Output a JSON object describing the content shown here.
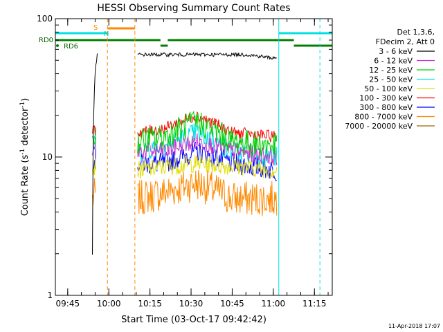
{
  "chart_data": {
    "type": "line",
    "title": "HESSI Observing Summary Count Rates",
    "xlabel": "Start Time (03-Oct-17 09:42:42)",
    "ylabel": "Count Rate (s⁻¹ detector⁻¹)",
    "ylabel_parts": {
      "main": "Count Rate (s",
      "sup1": "-1",
      "mid": " detector",
      "sup2": "-1",
      "end": ")"
    },
    "y_scale": "log",
    "ylim": [
      1,
      100
    ],
    "y_ticks": [
      {
        "value": 1,
        "label": "1"
      },
      {
        "value": 10,
        "label": "10"
      },
      {
        "value": 100,
        "label": "100"
      }
    ],
    "xlim": [
      "09:40:30",
      "11:21:30"
    ],
    "x_ticks": [
      {
        "time": "09:45",
        "label": "09:45"
      },
      {
        "time": "10:00",
        "label": "10:00"
      },
      {
        "time": "10:15",
        "label": "10:15"
      },
      {
        "time": "10:30",
        "label": "10:30"
      },
      {
        "time": "10:45",
        "label": "10:45"
      },
      {
        "time": "11:00",
        "label": "11:00"
      },
      {
        "time": "11:15",
        "label": "11:15"
      }
    ],
    "legend_header": [
      "Det 1,3,6,",
      "FDecim 2, Att 0"
    ],
    "legend_position": "outside-right",
    "series": [
      {
        "name": "3 - 6 keV",
        "color": "#000000",
        "segments": [
          {
            "x": [
              "09:54:00",
              "09:55:00",
              "09:56:00"
            ],
            "y": [
              2,
              40,
              60
            ]
          },
          {
            "x": [
              "10:10:30",
              "10:20:00",
              "10:30:00",
              "10:40:00",
              "10:50:00",
              "11:00:00",
              "11:01:30"
            ],
            "y": [
              55,
              55,
              55,
              55,
              55,
              52,
              52
            ]
          }
        ]
      },
      {
        "name": "6 - 12 keV",
        "color": "#cc33cc",
        "segments": [
          {
            "x": [
              "09:54:00",
              "09:55:30"
            ],
            "y": [
              10,
              13
            ]
          },
          {
            "x": [
              "10:10:30",
              "10:20:00",
              "10:32:00",
              "10:45:00",
              "11:01:30"
            ],
            "y": [
              11,
              11,
              13,
              11,
              10
            ]
          }
        ]
      },
      {
        "name": "12 - 25 keV",
        "color": "#00d000",
        "segments": [
          {
            "x": [
              "09:54:00",
              "09:55:30"
            ],
            "y": [
              13,
              15
            ]
          },
          {
            "x": [
              "10:10:30",
              "10:20:00",
              "10:32:00",
              "10:45:00",
              "11:01:30"
            ],
            "y": [
              13,
              14,
              18,
              13,
              12
            ]
          }
        ]
      },
      {
        "name": "25 - 50 keV",
        "color": "#00e0e0",
        "segments": [
          {
            "x": [
              "09:54:00",
              "09:55:30"
            ],
            "y": [
              11,
              13
            ]
          },
          {
            "x": [
              "10:10:30",
              "10:20:00",
              "10:32:00",
              "10:45:00",
              "11:01:30"
            ],
            "y": [
              11,
              12,
              15,
              11,
              10
            ]
          }
        ]
      },
      {
        "name": "50 - 100 keV",
        "color": "#e0e000",
        "segments": [
          {
            "x": [
              "09:54:00",
              "09:55:30"
            ],
            "y": [
              8,
              9
            ]
          },
          {
            "x": [
              "10:10:30",
              "10:32:00",
              "11:01:30"
            ],
            "y": [
              8,
              9,
              8
            ]
          }
        ]
      },
      {
        "name": "100 - 300 keV",
        "color": "#ff0000",
        "segments": [
          {
            "x": [
              "09:54:00",
              "09:55:30"
            ],
            "y": [
              15,
              16
            ]
          },
          {
            "x": [
              "10:10:30",
              "10:20:00",
              "10:32:00",
              "10:45:00",
              "11:01:30"
            ],
            "y": [
              15,
              16,
              20,
              15,
              14
            ]
          }
        ]
      },
      {
        "name": "300 - 800 keV",
        "color": "#0000ff",
        "segments": [
          {
            "x": [
              "09:54:00",
              "09:55:30"
            ],
            "y": [
              9,
              10
            ]
          },
          {
            "x": [
              "10:10:30",
              "10:20:00",
              "10:32:00",
              "10:45:00",
              "11:01:30"
            ],
            "y": [
              9,
              9,
              11,
              9,
              8
            ]
          }
        ]
      },
      {
        "name": "800 - 7000 keV",
        "color": "#ff8800",
        "segments": [
          {
            "x": [
              "09:54:00",
              "09:55:30"
            ],
            "y": [
              5,
              5.5
            ]
          },
          {
            "x": [
              "10:10:30",
              "10:20:00",
              "10:32:00",
              "10:45:00",
              "11:01:30"
            ],
            "y": [
              5,
              5.5,
              6.5,
              5,
              5
            ]
          }
        ]
      },
      {
        "name": "7000 - 20000 keV",
        "color": "#a06000",
        "segments": []
      }
    ],
    "status_bars": [
      {
        "label": "S",
        "color": "#ff8800",
        "x": [
          "09:59:30",
          "10:09:30"
        ]
      },
      {
        "label": "N",
        "color": "#00e0e0",
        "x": [
          "09:40:30",
          "09:59:30"
        ]
      },
      {
        "label": "N",
        "color": "#00e0e0",
        "x": [
          "11:02:00",
          "11:21:30"
        ]
      },
      {
        "label": "RD0",
        "color": "#008000",
        "x": [
          "09:40:30",
          "10:18:50"
        ]
      },
      {
        "label": "RD0",
        "color": "#008000",
        "x": [
          "10:21:30",
          "11:07:30"
        ]
      },
      {
        "label": "RD6",
        "color": "#008000",
        "x": [
          "10:18:50",
          "10:21:30"
        ]
      },
      {
        "label": "RD6",
        "color": "#008000",
        "x": [
          "11:07:30",
          "11:21:30"
        ]
      }
    ],
    "status_labels": [
      "S",
      "N",
      "RD0",
      "RD6"
    ],
    "vertical_markers": [
      {
        "x": "09:40:30",
        "color": "#00e0e0",
        "style": "solid"
      },
      {
        "x": "09:59:30",
        "color": "#ff8800",
        "style": "dashed"
      },
      {
        "x": "10:09:30",
        "color": "#ff8800",
        "style": "dashed"
      },
      {
        "x": "11:02:00",
        "color": "#00e0e0",
        "style": "solid"
      },
      {
        "x": "11:17:00",
        "color": "#00e0e0",
        "style": "dashed"
      }
    ],
    "footer": "11-Apr-2018 17:07"
  }
}
